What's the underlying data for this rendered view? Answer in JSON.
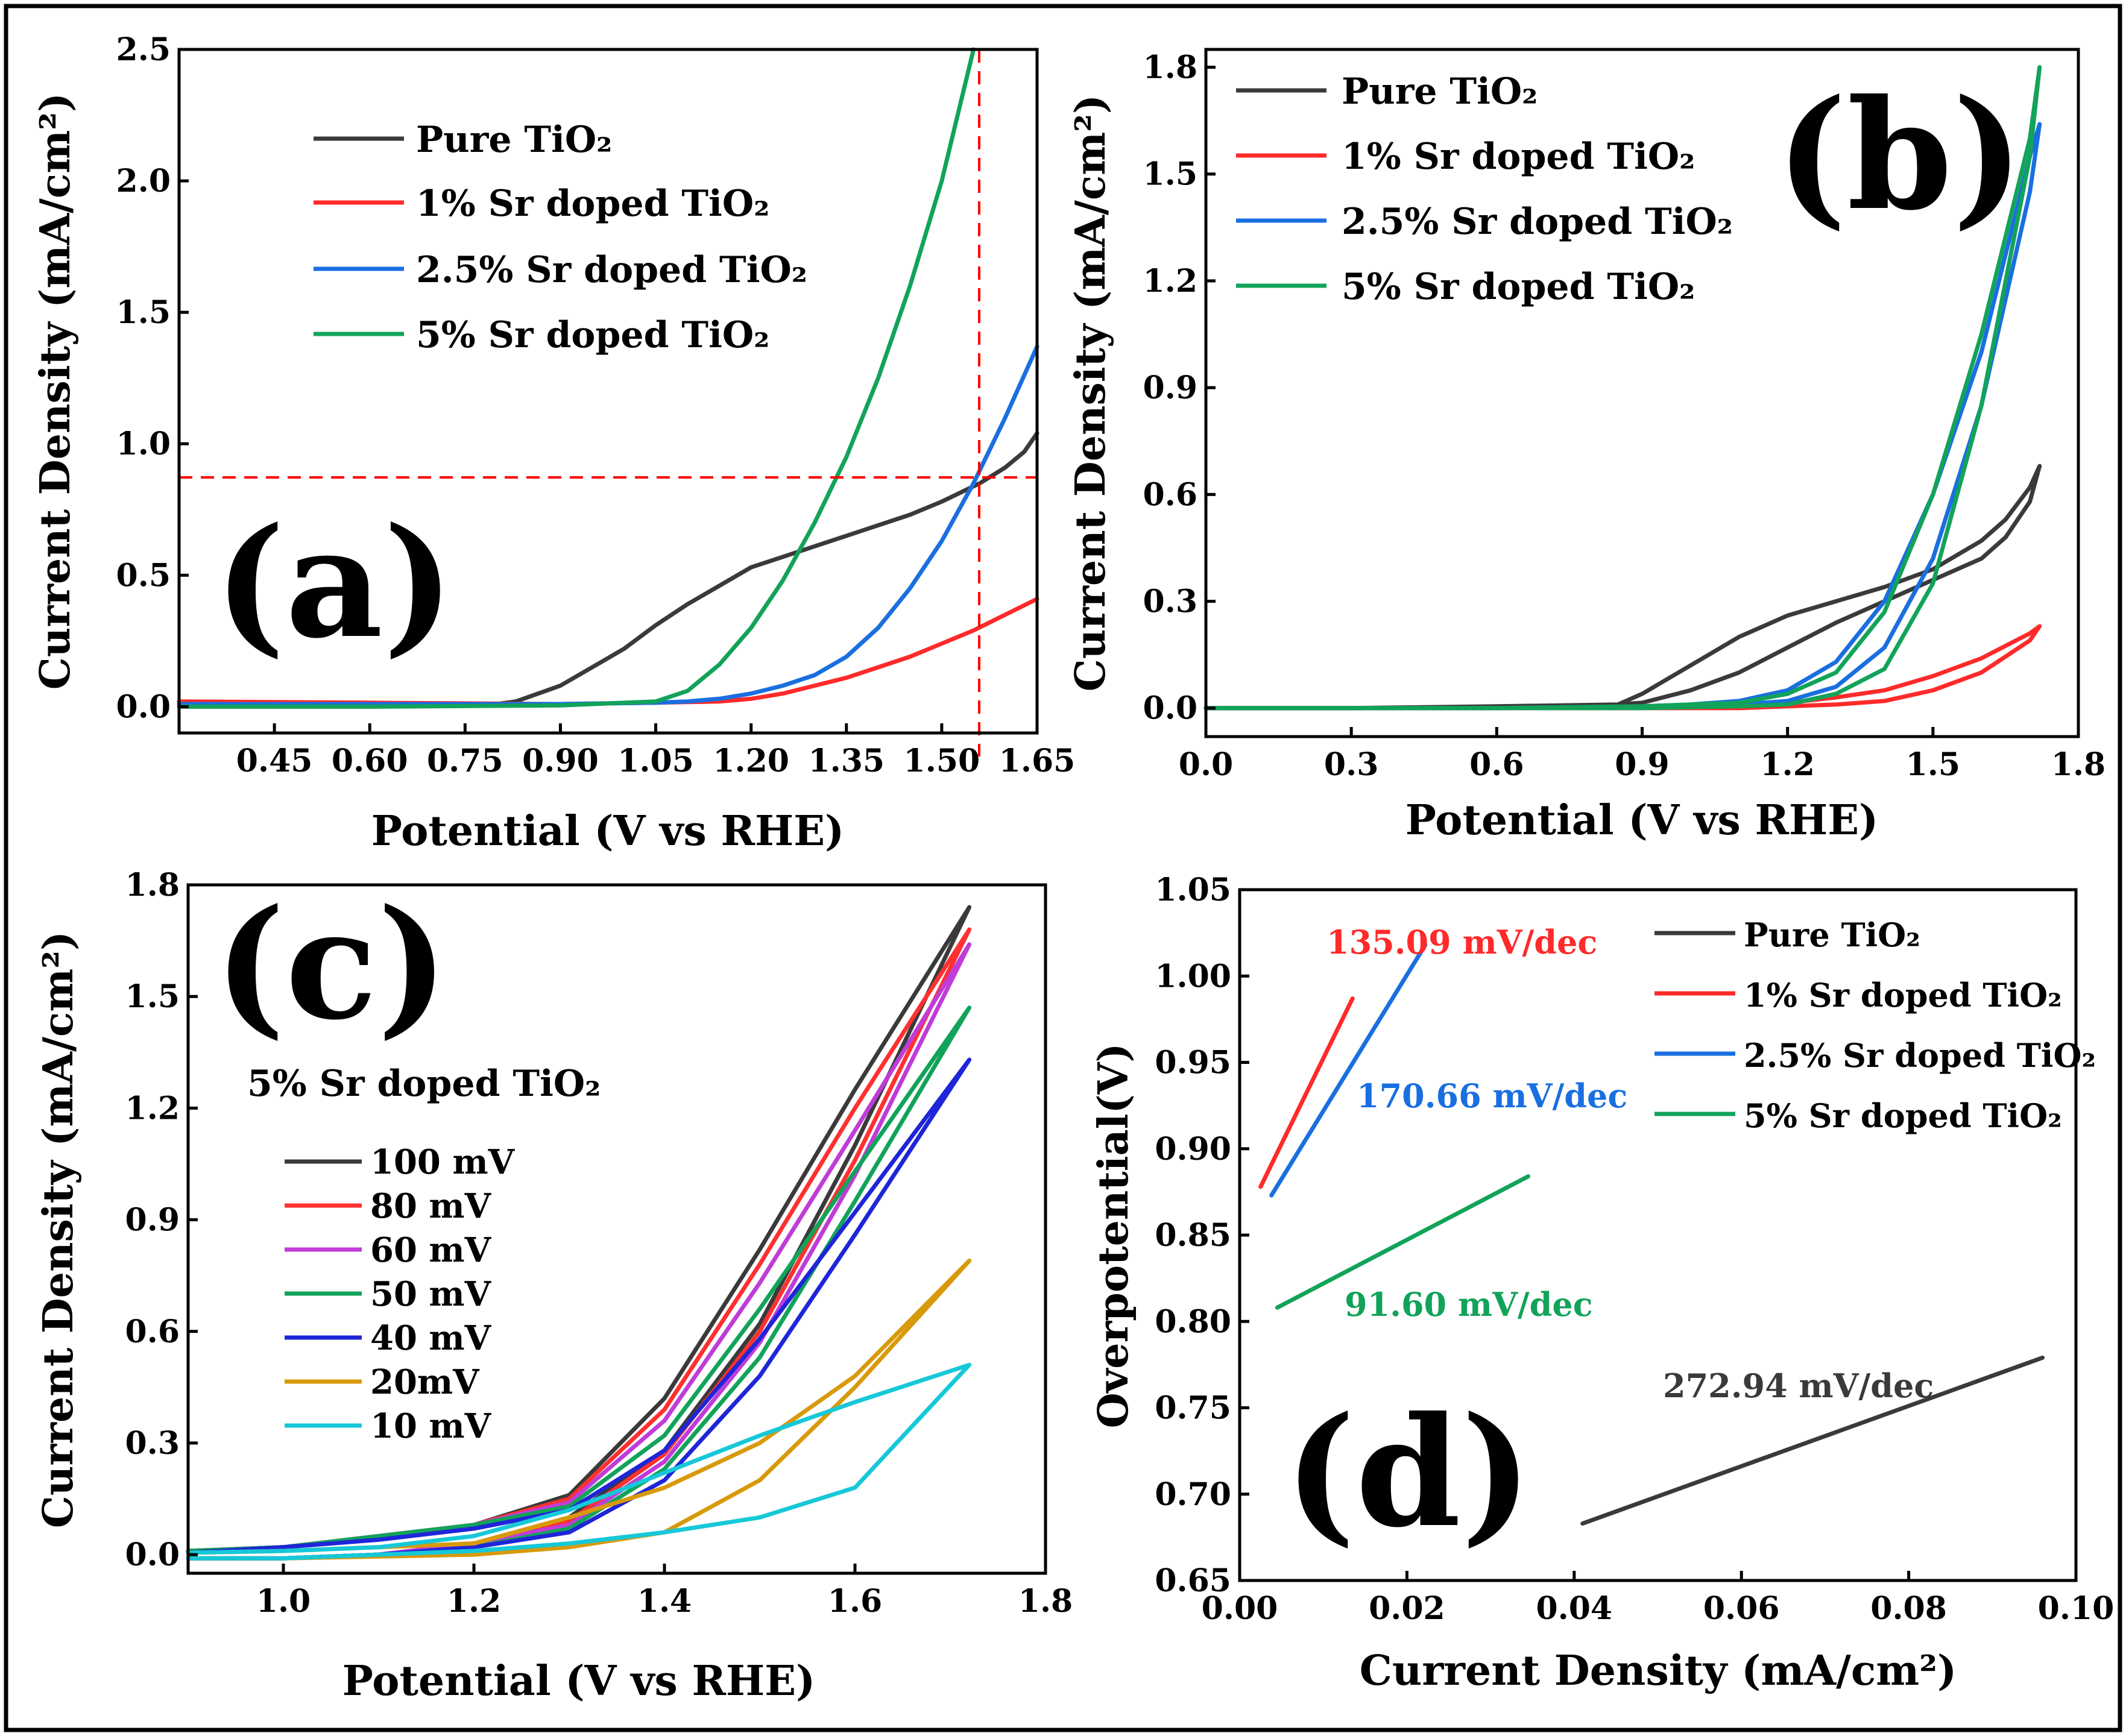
{
  "figure": {
    "frame_color": "#000000"
  },
  "panels": [
    {
      "id": "a",
      "panel_label": "(a)",
      "xlabel": "Potential (V vs RHE)",
      "ylabel": "Current Density (mA/cm²)",
      "xlim": [
        0.3,
        1.65
      ],
      "ylim": [
        -0.1,
        2.5
      ],
      "xticks": [
        "0.45",
        "0.60",
        "0.75",
        "0.90",
        "1.05",
        "1.20",
        "1.35",
        "1.50",
        "1.65"
      ],
      "yticks": [
        "0.0",
        "0.5",
        "1.0",
        "1.5",
        "2.0",
        "2.5"
      ],
      "legend": [
        "Pure TiO₂",
        "1% Sr doped TiO₂",
        "2.5% Sr doped TiO₂",
        "5% Sr doped TiO₂"
      ],
      "reference_lines": {
        "x": 1.56,
        "y": 0.87,
        "color": "#ff0000"
      }
    },
    {
      "id": "b",
      "panel_label": "(b)",
      "xlabel": "Potential (V vs RHE)",
      "ylabel": "Current Density (mA/cm²)",
      "xlim": [
        0.0,
        1.8
      ],
      "ylim": [
        -0.08,
        1.85
      ],
      "xticks": [
        "0.0",
        "0.3",
        "0.6",
        "0.9",
        "1.2",
        "1.5",
        "1.8"
      ],
      "yticks": [
        "0.0",
        "0.3",
        "0.6",
        "0.9",
        "1.2",
        "1.5",
        "1.8"
      ],
      "legend": [
        "Pure TiO₂",
        "1% Sr doped TiO₂",
        "2.5% Sr doped TiO₂",
        "5% Sr doped TiO₂"
      ]
    },
    {
      "id": "c",
      "panel_label": "(c)",
      "sample_label": "5% Sr doped TiO₂",
      "xlabel": "Potential (V vs RHE)",
      "ylabel": "Current Density (mA/cm²)",
      "xlim": [
        0.9,
        1.8
      ],
      "ylim": [
        -0.05,
        1.8
      ],
      "xticks": [
        "1.0",
        "1.2",
        "1.4",
        "1.6",
        "1.8"
      ],
      "yticks": [
        "0.0",
        "0.3",
        "0.6",
        "0.9",
        "1.2",
        "1.5",
        "1.8"
      ],
      "legend": [
        "100 mV",
        "80 mV",
        "60 mV",
        "50 mV",
        "40 mV",
        "20mV",
        "10 mV"
      ]
    },
    {
      "id": "d",
      "panel_label": "(d)",
      "xlabel": "Current Density (mA/cm²)",
      "ylabel": "Overpotential(V)",
      "xlim": [
        0.0,
        0.1
      ],
      "ylim": [
        0.65,
        1.05
      ],
      "xticks": [
        "0.00",
        "0.02",
        "0.04",
        "0.06",
        "0.08",
        "0.10"
      ],
      "yticks": [
        "0.65",
        "0.70",
        "0.75",
        "0.80",
        "0.85",
        "0.90",
        "0.95",
        "1.00",
        "1.05"
      ],
      "legend": [
        "Pure TiO₂",
        "1% Sr doped TiO₂",
        "2.5% Sr doped TiO₂",
        "5% Sr doped TiO₂"
      ],
      "annotations": [
        "135.09 mV/dec",
        "170.66 mV/dec",
        "91.60 mV/dec",
        "272.94 mV/dec"
      ]
    }
  ],
  "chart_data": [
    {
      "panel": "a",
      "type": "line",
      "title": "",
      "xlabel": "Potential (V vs RHE)",
      "ylabel": "Current Density (mA/cm²)",
      "xlim": [
        0.3,
        1.65
      ],
      "ylim": [
        -0.1,
        2.5
      ],
      "series": [
        {
          "name": "Pure TiO₂",
          "color": "#3a3a3a",
          "x": [
            0.3,
            0.6,
            0.8,
            0.83,
            0.9,
            0.95,
            1.0,
            1.05,
            1.1,
            1.15,
            1.2,
            1.25,
            1.3,
            1.35,
            1.4,
            1.45,
            1.5,
            1.56,
            1.6,
            1.63,
            1.65
          ],
          "y": [
            0.01,
            0.01,
            0.01,
            0.02,
            0.08,
            0.15,
            0.22,
            0.31,
            0.39,
            0.46,
            0.53,
            0.57,
            0.61,
            0.65,
            0.69,
            0.73,
            0.78,
            0.85,
            0.91,
            0.97,
            1.04
          ]
        },
        {
          "name": "1% Sr doped TiO₂",
          "color": "#ff2a2a",
          "x": [
            0.3,
            0.6,
            0.9,
            1.05,
            1.15,
            1.2,
            1.25,
            1.3,
            1.35,
            1.4,
            1.45,
            1.5,
            1.55,
            1.6,
            1.65
          ],
          "y": [
            0.02,
            0.015,
            0.01,
            0.015,
            0.02,
            0.03,
            0.05,
            0.08,
            0.11,
            0.15,
            0.19,
            0.24,
            0.29,
            0.35,
            0.41
          ]
        },
        {
          "name": "2.5% Sr doped TiO₂",
          "color": "#1a6fe0",
          "x": [
            0.3,
            0.6,
            0.9,
            1.05,
            1.1,
            1.15,
            1.2,
            1.25,
            1.3,
            1.35,
            1.4,
            1.45,
            1.5,
            1.55,
            1.6,
            1.65
          ],
          "y": [
            0.01,
            0.01,
            0.01,
            0.015,
            0.02,
            0.03,
            0.05,
            0.08,
            0.12,
            0.19,
            0.3,
            0.45,
            0.63,
            0.85,
            1.1,
            1.37
          ]
        },
        {
          "name": "5% Sr doped TiO₂",
          "color": "#12a35a",
          "x": [
            0.3,
            0.6,
            0.9,
            1.05,
            1.1,
            1.15,
            1.2,
            1.25,
            1.3,
            1.35,
            1.4,
            1.45,
            1.5,
            1.55
          ],
          "y": [
            0.0,
            0.0,
            0.005,
            0.02,
            0.06,
            0.16,
            0.3,
            0.48,
            0.7,
            0.95,
            1.25,
            1.6,
            2.0,
            2.5
          ]
        }
      ]
    },
    {
      "panel": "b",
      "type": "line",
      "title": "",
      "xlabel": "Potential (V vs RHE)",
      "ylabel": "Current Density (mA/cm²)",
      "xlim": [
        0.0,
        1.8
      ],
      "ylim": [
        -0.08,
        1.85
      ],
      "note": "cyclic curves (forward then reverse sweep)",
      "series": [
        {
          "name": "Pure TiO₂",
          "color": "#3a3a3a",
          "x": [
            0.0,
            0.3,
            0.6,
            0.85,
            0.9,
            1.0,
            1.1,
            1.2,
            1.3,
            1.4,
            1.5,
            1.6,
            1.65,
            1.7,
            1.72,
            1.7,
            1.65,
            1.6,
            1.5,
            1.4,
            1.3,
            1.2,
            1.1,
            1.0,
            0.9,
            0.85,
            0.6,
            0.3,
            0.0
          ],
          "y": [
            0.0,
            0.0,
            0.005,
            0.01,
            0.04,
            0.12,
            0.2,
            0.26,
            0.3,
            0.34,
            0.39,
            0.47,
            0.53,
            0.62,
            0.68,
            0.58,
            0.48,
            0.42,
            0.36,
            0.3,
            0.24,
            0.17,
            0.1,
            0.05,
            0.015,
            0.01,
            0.005,
            0.0,
            0.0
          ]
        },
        {
          "name": "1% Sr doped TiO₂",
          "color": "#ff2a2a",
          "x": [
            0.0,
            0.6,
            0.9,
            1.1,
            1.2,
            1.3,
            1.4,
            1.5,
            1.6,
            1.7,
            1.72,
            1.7,
            1.6,
            1.5,
            1.4,
            1.3,
            1.2,
            1.1,
            0.9,
            0.6,
            0.0
          ],
          "y": [
            0.0,
            0.0,
            0.005,
            0.01,
            0.015,
            0.03,
            0.05,
            0.09,
            0.14,
            0.21,
            0.23,
            0.19,
            0.1,
            0.05,
            0.02,
            0.01,
            0.005,
            0.0,
            0.0,
            0.0,
            0.0
          ]
        },
        {
          "name": "2.5% Sr doped TiO₂",
          "color": "#1a6fe0",
          "x": [
            0.0,
            0.6,
            0.9,
            1.0,
            1.1,
            1.2,
            1.3,
            1.4,
            1.5,
            1.6,
            1.7,
            1.72,
            1.7,
            1.6,
            1.5,
            1.4,
            1.3,
            1.2,
            1.1,
            0.9,
            0.6,
            0.0
          ],
          "y": [
            0.0,
            0.0,
            0.005,
            0.01,
            0.02,
            0.05,
            0.13,
            0.3,
            0.6,
            1.0,
            1.55,
            1.64,
            1.45,
            0.85,
            0.42,
            0.17,
            0.06,
            0.02,
            0.01,
            0.005,
            0.0,
            0.0
          ]
        },
        {
          "name": "5% Sr doped TiO₂",
          "color": "#12a35a",
          "x": [
            0.0,
            0.6,
            0.9,
            1.0,
            1.1,
            1.2,
            1.3,
            1.4,
            1.5,
            1.6,
            1.7,
            1.72,
            1.7,
            1.6,
            1.5,
            1.4,
            1.3,
            1.2,
            1.1,
            0.9,
            0.6,
            0.0
          ],
          "y": [
            0.0,
            0.0,
            0.005,
            0.01,
            0.015,
            0.04,
            0.1,
            0.27,
            0.6,
            1.05,
            1.6,
            1.8,
            1.55,
            0.85,
            0.35,
            0.11,
            0.04,
            0.01,
            0.005,
            0.0,
            0.0,
            0.0
          ]
        }
      ]
    },
    {
      "panel": "c",
      "type": "line",
      "title": "5% Sr doped TiO₂",
      "xlabel": "Potential (V vs RHE)",
      "ylabel": "Current Density (mA/cm²)",
      "xlim": [
        0.9,
        1.8
      ],
      "ylim": [
        -0.05,
        1.8
      ],
      "note": "cyclic curves at different scan rates (forward then reverse sweep)",
      "series": [
        {
          "name": "100 mV",
          "color": "#3a3a3a",
          "x": [
            0.9,
            1.0,
            1.1,
            1.2,
            1.3,
            1.4,
            1.5,
            1.6,
            1.72,
            1.6,
            1.5,
            1.4,
            1.3,
            1.2,
            1.1,
            1.0,
            0.9
          ],
          "y": [
            0.01,
            0.02,
            0.05,
            0.08,
            0.16,
            0.42,
            0.82,
            1.25,
            1.74,
            1.1,
            0.62,
            0.28,
            0.1,
            0.03,
            0.0,
            -0.01,
            -0.01
          ]
        },
        {
          "name": "80 mV",
          "color": "#ff3030",
          "x": [
            0.9,
            1.0,
            1.1,
            1.2,
            1.3,
            1.4,
            1.5,
            1.6,
            1.72,
            1.6,
            1.5,
            1.4,
            1.3,
            1.2,
            1.1,
            1.0,
            0.9
          ],
          "y": [
            0.01,
            0.02,
            0.05,
            0.08,
            0.15,
            0.39,
            0.78,
            1.2,
            1.68,
            1.06,
            0.6,
            0.27,
            0.09,
            0.03,
            0.0,
            -0.01,
            -0.01
          ]
        },
        {
          "name": "60 mV",
          "color": "#c03cd8",
          "x": [
            0.9,
            1.0,
            1.1,
            1.2,
            1.3,
            1.4,
            1.5,
            1.6,
            1.72,
            1.6,
            1.5,
            1.4,
            1.3,
            1.2,
            1.1,
            1.0,
            0.9
          ],
          "y": [
            0.01,
            0.02,
            0.05,
            0.08,
            0.14,
            0.36,
            0.73,
            1.14,
            1.64,
            1.02,
            0.57,
            0.25,
            0.08,
            0.03,
            0.0,
            -0.01,
            -0.01
          ]
        },
        {
          "name": "50 mV",
          "color": "#12a35a",
          "x": [
            0.9,
            1.0,
            1.1,
            1.2,
            1.3,
            1.4,
            1.5,
            1.6,
            1.72,
            1.6,
            1.5,
            1.4,
            1.3,
            1.2,
            1.1,
            1.0,
            0.9
          ],
          "y": [
            0.01,
            0.02,
            0.05,
            0.08,
            0.13,
            0.32,
            0.66,
            1.03,
            1.47,
            0.95,
            0.53,
            0.23,
            0.07,
            0.02,
            0.0,
            -0.01,
            -0.01
          ]
        },
        {
          "name": "40 mV",
          "color": "#1f25d8",
          "x": [
            0.9,
            1.0,
            1.1,
            1.2,
            1.3,
            1.4,
            1.5,
            1.6,
            1.72,
            1.6,
            1.5,
            1.4,
            1.3,
            1.2,
            1.1,
            1.0,
            0.9
          ],
          "y": [
            0.005,
            0.02,
            0.04,
            0.07,
            0.12,
            0.28,
            0.58,
            0.92,
            1.33,
            0.86,
            0.48,
            0.2,
            0.06,
            0.02,
            0.0,
            -0.01,
            -0.01
          ]
        },
        {
          "name": "20mV",
          "color": "#d89a0a",
          "x": [
            0.9,
            1.0,
            1.1,
            1.2,
            1.3,
            1.4,
            1.5,
            1.6,
            1.72,
            1.6,
            1.5,
            1.4,
            1.3,
            1.2,
            1.1,
            1.0,
            0.9
          ],
          "y": [
            0.005,
            0.01,
            0.02,
            0.03,
            0.1,
            0.18,
            0.3,
            0.48,
            0.79,
            0.45,
            0.2,
            0.06,
            0.02,
            0.0,
            -0.005,
            -0.01,
            -0.01
          ]
        },
        {
          "name": "10 mV",
          "color": "#16c8d8",
          "x": [
            0.9,
            1.0,
            1.1,
            1.2,
            1.3,
            1.4,
            1.5,
            1.6,
            1.72,
            1.6,
            1.5,
            1.4,
            1.3,
            1.2,
            1.1,
            1.0,
            0.9
          ],
          "y": [
            0.005,
            0.01,
            0.02,
            0.05,
            0.12,
            0.22,
            0.32,
            0.41,
            0.51,
            0.18,
            0.1,
            0.06,
            0.03,
            0.01,
            0.0,
            -0.01,
            -0.01
          ]
        }
      ]
    },
    {
      "panel": "d",
      "type": "line",
      "title": "",
      "xlabel": "Current Density (mA/cm²)",
      "ylabel": "Overpotential(V)",
      "xlim": [
        0.0,
        0.1
      ],
      "ylim": [
        0.65,
        1.05
      ],
      "series": [
        {
          "name": "Pure TiO₂",
          "color": "#3a3a3a",
          "x": [
            0.041,
            0.096
          ],
          "y": [
            0.683,
            0.779
          ],
          "slope_label": "272.94 mV/dec"
        },
        {
          "name": "1% Sr doped TiO₂",
          "color": "#ff2a2a",
          "x": [
            0.0025,
            0.0135
          ],
          "y": [
            0.878,
            0.987
          ],
          "slope_label": "135.09 mV/dec"
        },
        {
          "name": "2.5% Sr doped TiO₂",
          "color": "#1a6fe0",
          "x": [
            0.0038,
            0.0222
          ],
          "y": [
            0.873,
            1.018
          ],
          "slope_label": "170.66 mV/dec"
        },
        {
          "name": "5% Sr doped TiO₂",
          "color": "#12a35a",
          "x": [
            0.0045,
            0.0345
          ],
          "y": [
            0.808,
            0.884
          ],
          "slope_label": "91.60 mV/dec"
        }
      ]
    }
  ]
}
